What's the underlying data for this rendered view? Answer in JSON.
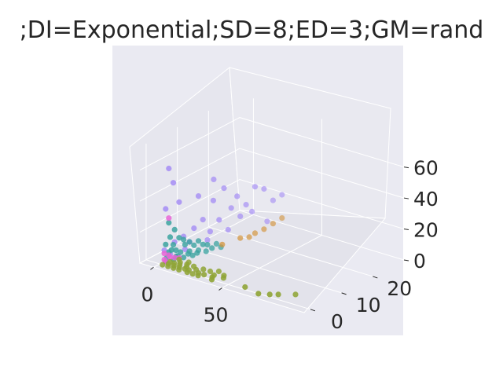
{
  "title": ";DI=Exponential;SD=8;ED=3;GM=rand",
  "colors": {
    "background": "#eaeaf2",
    "pane": "#e6e6ee",
    "grid": "#ffffff",
    "text": "#262626"
  },
  "chart_data": {
    "type": "scatter",
    "title": ";DI=Exponential;SD=8;ED=3;GM=rand",
    "grid": true,
    "projection": "3d",
    "axes": {
      "x": {
        "label": "",
        "ticks": [
          "0",
          "50"
        ],
        "tick_values": [
          0,
          50
        ],
        "range": [
          -10,
          110
        ]
      },
      "y": {
        "label": "",
        "ticks": [
          "0",
          "10",
          "20"
        ],
        "tick_values": [
          0,
          10,
          20
        ],
        "range": [
          -2,
          30
        ]
      },
      "z": {
        "label": "",
        "ticks": [
          "0",
          "20",
          "40",
          "60"
        ],
        "tick_values": [
          0,
          20,
          40,
          60
        ],
        "range": [
          0,
          75
        ]
      }
    },
    "series": [
      {
        "color": "#a48cf4",
        "points": [
          [
            2,
            2,
            60
          ],
          [
            3,
            3,
            50
          ],
          [
            2,
            1,
            35
          ],
          [
            5,
            4,
            37
          ],
          [
            12,
            12,
            45
          ],
          [
            10,
            8,
            38
          ],
          [
            15,
            14,
            38
          ],
          [
            14,
            11,
            33
          ],
          [
            20,
            16,
            32
          ],
          [
            24,
            20,
            35
          ],
          [
            26,
            22,
            32
          ],
          [
            22,
            18,
            25
          ],
          [
            18,
            15,
            25
          ],
          [
            28,
            24,
            23
          ],
          [
            16,
            12,
            20
          ],
          [
            11,
            9,
            22
          ],
          [
            9,
            7,
            18
          ],
          [
            20,
            17,
            18
          ],
          [
            24,
            19,
            20
          ],
          [
            14,
            10,
            14
          ],
          [
            6,
            5,
            14
          ],
          [
            30,
            26,
            25
          ],
          [
            18,
            14,
            12
          ],
          [
            8,
            6,
            10
          ],
          [
            4,
            3,
            12
          ],
          [
            26,
            23,
            10
          ],
          [
            12,
            10,
            8
          ],
          [
            7,
            5,
            6
          ],
          [
            3,
            2,
            5
          ],
          [
            1,
            1,
            8
          ]
        ]
      },
      {
        "color": "#3ba3a0",
        "points": [
          [
            2,
            2,
            25
          ],
          [
            4,
            3,
            20
          ],
          [
            3,
            2,
            16
          ],
          [
            5,
            4,
            14
          ],
          [
            2,
            1,
            12
          ],
          [
            6,
            5,
            12
          ],
          [
            8,
            6,
            10
          ],
          [
            3,
            3,
            10
          ],
          [
            7,
            5,
            9
          ],
          [
            10,
            8,
            9
          ],
          [
            4,
            2,
            8
          ],
          [
            5,
            3,
            7
          ],
          [
            9,
            7,
            7
          ],
          [
            11,
            9,
            6
          ],
          [
            2,
            2,
            6
          ],
          [
            6,
            4,
            5
          ],
          [
            12,
            10,
            5
          ],
          [
            3,
            1,
            4
          ],
          [
            8,
            6,
            4
          ],
          [
            14,
            12,
            4
          ],
          [
            5,
            3,
            3
          ],
          [
            10,
            8,
            3
          ],
          [
            4,
            4,
            2
          ],
          [
            7,
            6,
            2
          ],
          [
            13,
            11,
            2
          ],
          [
            2,
            1,
            1
          ],
          [
            9,
            8,
            1
          ],
          [
            15,
            13,
            1
          ],
          [
            6,
            5,
            0.5
          ],
          [
            11,
            10,
            0.5
          ],
          [
            3,
            3,
            0.3
          ],
          [
            8,
            7,
            0.2
          ]
        ]
      },
      {
        "color": "#e865d6",
        "points": [
          [
            2,
            2,
            28
          ],
          [
            1,
            1,
            6
          ],
          [
            2,
            2,
            4
          ],
          [
            3,
            2,
            3
          ],
          [
            1,
            1,
            2
          ],
          [
            4,
            3,
            2
          ],
          [
            2,
            1,
            1
          ],
          [
            5,
            4,
            1
          ]
        ]
      },
      {
        "color": "#d39236",
        "points": [
          [
            28,
            24,
            8
          ],
          [
            26,
            22,
            6
          ],
          [
            24,
            20,
            5
          ],
          [
            20,
            17,
            4
          ],
          [
            16,
            13,
            3
          ],
          [
            30,
            26,
            10
          ],
          [
            22,
            19,
            3
          ]
        ]
      },
      {
        "color": "#8fa436",
        "points": [
          [
            90,
            4,
            0
          ],
          [
            82,
            2,
            0
          ],
          [
            78,
            1,
            0
          ],
          [
            72,
            0,
            0
          ],
          [
            60,
            1,
            0
          ],
          [
            40,
            3,
            0
          ],
          [
            35,
            2,
            0
          ],
          [
            38,
            0,
            0
          ],
          [
            30,
            1,
            0
          ],
          [
            28,
            0,
            0
          ],
          [
            34,
            4,
            0
          ],
          [
            25,
            3,
            0
          ],
          [
            26,
            1,
            0
          ],
          [
            22,
            2,
            0
          ],
          [
            20,
            0,
            0
          ],
          [
            18,
            3,
            0
          ],
          [
            16,
            1,
            0
          ],
          [
            15,
            2,
            0
          ],
          [
            14,
            0,
            0
          ],
          [
            12,
            4,
            0
          ],
          [
            12,
            1,
            0
          ],
          [
            10,
            2,
            0
          ],
          [
            10,
            0,
            0
          ],
          [
            8,
            3,
            0
          ],
          [
            8,
            1,
            0
          ],
          [
            6,
            2,
            0
          ],
          [
            6,
            0,
            0
          ],
          [
            5,
            4,
            0
          ],
          [
            4,
            1,
            0
          ],
          [
            3,
            2,
            0
          ],
          [
            2,
            0,
            0
          ],
          [
            24,
            0,
            0
          ],
          [
            30,
            3,
            0
          ],
          [
            36,
            1,
            0
          ],
          [
            42,
            2,
            0
          ],
          [
            19,
            1,
            0
          ],
          [
            13,
            3,
            0
          ]
        ]
      }
    ]
  }
}
